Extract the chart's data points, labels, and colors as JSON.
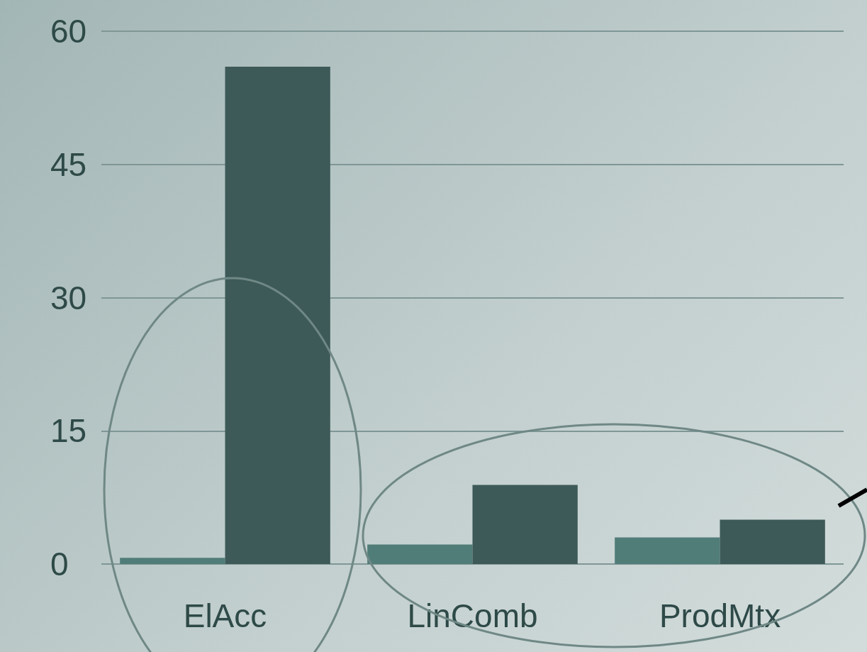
{
  "chart_data": {
    "type": "bar",
    "categories": [
      "ElAcc",
      "LinComb",
      "ProdMtx"
    ],
    "series": [
      {
        "color": "#517d79",
        "values": [
          0.7,
          2.2,
          3.0
        ]
      },
      {
        "color": "#3d5a58",
        "values": [
          56,
          8.9,
          5.0
        ]
      }
    ],
    "ylim": [
      0,
      60
    ],
    "yticks": [
      0,
      15,
      30,
      45,
      60
    ],
    "grid": "y"
  }
}
